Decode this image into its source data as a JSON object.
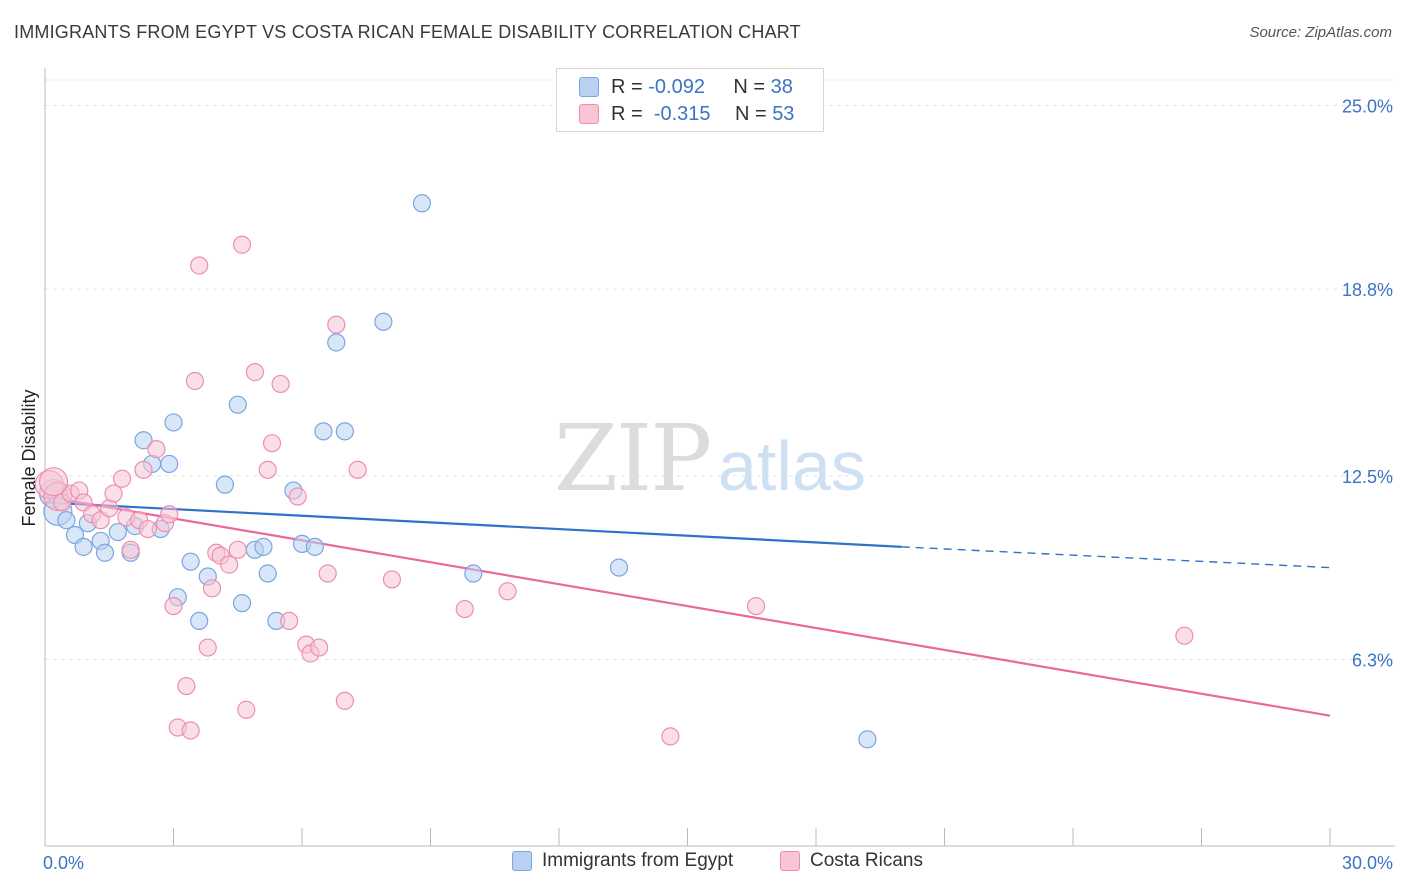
{
  "title": "IMMIGRANTS FROM EGYPT VS COSTA RICAN FEMALE DISABILITY CORRELATION CHART",
  "source": "Source: ZipAtlas.com",
  "watermark": {
    "zip": "ZIP",
    "atlas": "atlas"
  },
  "colors": {
    "blue_fill": "#b9d2f3",
    "blue_stroke": "#7aa6e0",
    "blue_line": "#2f72c8",
    "pink_fill": "#f8c5d5",
    "pink_stroke": "#ec8fae",
    "pink_line": "#e8699a",
    "grid": "#e3e3e3",
    "axis_text": "#3b73c5"
  },
  "legend": {
    "rows": [
      {
        "r_label": "R =",
        "r_value": "-0.092",
        "n_label": "N =",
        "n_value": "38"
      },
      {
        "r_label": "R =",
        "r_value": "-0.315",
        "n_label": "N =",
        "n_value": "53"
      }
    ]
  },
  "bottom_legend": [
    "Immigrants from Egypt",
    "Costa Ricans"
  ],
  "chart_data": {
    "type": "scatter",
    "title": "IMMIGRANTS FROM EGYPT VS COSTA RICAN FEMALE DISABILITY CORRELATION CHART",
    "ylabel": "Female Disability",
    "xlim": [
      0,
      30
    ],
    "ylim": [
      0,
      26.2
    ],
    "x_tick_labels": [
      "0.0%",
      "30.0%"
    ],
    "y_ticks": [
      6.3,
      12.5,
      18.8,
      25.0
    ],
    "y_tick_labels": [
      "6.3%",
      "12.5%",
      "18.8%",
      "25.0%"
    ],
    "grid": true,
    "legend_position": "top-center",
    "series": [
      {
        "name": "Immigrants from Egypt",
        "color": "blue",
        "r": -0.092,
        "n": 38,
        "trend": {
          "x": [
            0,
            20.0
          ],
          "y": [
            11.6,
            10.1
          ],
          "dashed_to": [
            30.0,
            9.4
          ]
        },
        "points": [
          [
            0.2,
            11.9
          ],
          [
            0.3,
            11.3
          ],
          [
            0.5,
            11.0
          ],
          [
            0.7,
            10.5
          ],
          [
            0.9,
            10.1
          ],
          [
            1.0,
            10.9
          ],
          [
            1.3,
            10.3
          ],
          [
            1.4,
            9.9
          ],
          [
            1.7,
            10.6
          ],
          [
            2.0,
            9.9
          ],
          [
            2.1,
            10.8
          ],
          [
            2.3,
            13.7
          ],
          [
            2.5,
            12.9
          ],
          [
            2.7,
            10.7
          ],
          [
            2.9,
            12.9
          ],
          [
            3.0,
            14.3
          ],
          [
            3.1,
            8.4
          ],
          [
            3.4,
            9.6
          ],
          [
            3.6,
            7.6
          ],
          [
            3.8,
            9.1
          ],
          [
            4.2,
            12.2
          ],
          [
            4.5,
            14.9
          ],
          [
            4.6,
            8.2
          ],
          [
            4.9,
            10.0
          ],
          [
            5.1,
            10.1
          ],
          [
            5.2,
            9.2
          ],
          [
            5.4,
            7.6
          ],
          [
            5.8,
            12.0
          ],
          [
            6.0,
            10.2
          ],
          [
            6.3,
            10.1
          ],
          [
            6.5,
            14.0
          ],
          [
            6.8,
            17.0
          ],
          [
            7.0,
            14.0
          ],
          [
            7.9,
            17.7
          ],
          [
            8.8,
            21.7
          ],
          [
            10.0,
            9.2
          ],
          [
            13.4,
            9.4
          ],
          [
            19.2,
            3.6
          ]
        ]
      },
      {
        "name": "Costa Ricans",
        "color": "pink",
        "r": -0.315,
        "n": 53,
        "trend": {
          "x": [
            0,
            30.0
          ],
          "y": [
            11.8,
            4.4
          ]
        },
        "points": [
          [
            0.1,
            12.2
          ],
          [
            0.3,
            11.8
          ],
          [
            0.4,
            11.6
          ],
          [
            0.6,
            11.9
          ],
          [
            0.8,
            12.0
          ],
          [
            0.9,
            11.6
          ],
          [
            1.1,
            11.2
          ],
          [
            1.3,
            11.0
          ],
          [
            1.5,
            11.4
          ],
          [
            1.6,
            11.9
          ],
          [
            1.8,
            12.4
          ],
          [
            1.9,
            11.1
          ],
          [
            2.0,
            10.0
          ],
          [
            2.2,
            11.0
          ],
          [
            2.3,
            12.7
          ],
          [
            2.4,
            10.7
          ],
          [
            2.6,
            13.4
          ],
          [
            2.8,
            10.9
          ],
          [
            2.9,
            11.2
          ],
          [
            3.0,
            8.1
          ],
          [
            3.1,
            4.0
          ],
          [
            3.3,
            5.4
          ],
          [
            3.5,
            15.7
          ],
          [
            3.6,
            19.6
          ],
          [
            3.8,
            6.7
          ],
          [
            3.9,
            8.7
          ],
          [
            4.0,
            9.9
          ],
          [
            4.1,
            9.8
          ],
          [
            4.3,
            9.5
          ],
          [
            4.5,
            10.0
          ],
          [
            4.6,
            20.3
          ],
          [
            4.7,
            4.6
          ],
          [
            4.9,
            16.0
          ],
          [
            5.2,
            12.7
          ],
          [
            5.3,
            13.6
          ],
          [
            5.5,
            15.6
          ],
          [
            5.7,
            7.6
          ],
          [
            5.9,
            11.8
          ],
          [
            6.1,
            6.8
          ],
          [
            6.2,
            6.5
          ],
          [
            6.4,
            6.7
          ],
          [
            6.6,
            9.2
          ],
          [
            6.8,
            17.6
          ],
          [
            7.0,
            4.9
          ],
          [
            7.3,
            12.7
          ],
          [
            8.1,
            9.0
          ],
          [
            9.8,
            8.0
          ],
          [
            10.8,
            8.6
          ],
          [
            14.6,
            3.7
          ],
          [
            16.6,
            8.1
          ],
          [
            26.6,
            7.1
          ],
          [
            0.2,
            12.3
          ],
          [
            3.4,
            3.9
          ]
        ]
      }
    ]
  }
}
